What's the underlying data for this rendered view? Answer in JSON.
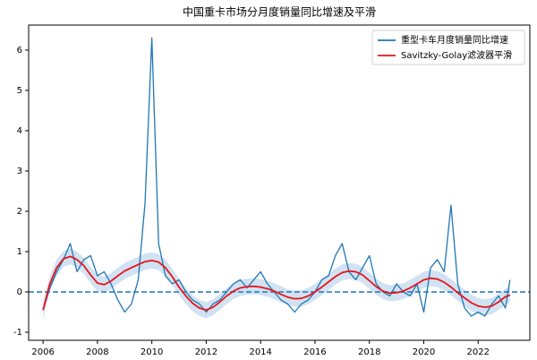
{
  "chart_data": {
    "type": "line",
    "title": "中国重卡市场分月度销量同比增速及平滑",
    "x": [
      2006,
      2006.25,
      2006.5,
      2006.75,
      2007,
      2007.25,
      2007.5,
      2007.75,
      2008,
      2008.25,
      2008.5,
      2008.75,
      2009,
      2009.25,
      2009.5,
      2009.75,
      2010,
      2010.25,
      2010.5,
      2010.75,
      2011,
      2011.25,
      2011.5,
      2011.75,
      2012,
      2012.25,
      2012.5,
      2012.75,
      2013,
      2013.25,
      2013.5,
      2013.75,
      2014,
      2014.25,
      2014.5,
      2014.75,
      2015,
      2015.25,
      2015.5,
      2015.75,
      2016,
      2016.25,
      2016.5,
      2016.75,
      2017,
      2017.25,
      2017.5,
      2017.75,
      2018,
      2018.25,
      2018.5,
      2018.75,
      2019,
      2019.25,
      2019.5,
      2019.75,
      2020,
      2020.25,
      2020.5,
      2020.75,
      2021,
      2021.25,
      2021.5,
      2021.75,
      2022,
      2022.25,
      2022.5,
      2022.75,
      2023,
      2023.17
    ],
    "series": [
      {
        "name": "重型卡车月度销量同比增速",
        "color": "#1f77b4",
        "values": [
          -0.45,
          0.1,
          0.5,
          0.8,
          1.2,
          0.5,
          0.8,
          0.9,
          0.4,
          0.5,
          0.2,
          -0.2,
          -0.5,
          -0.3,
          0.3,
          2.2,
          6.3,
          1.2,
          0.4,
          0.2,
          0.3,
          0.0,
          -0.2,
          -0.3,
          -0.5,
          -0.3,
          -0.2,
          0.0,
          0.2,
          0.3,
          0.1,
          0.3,
          0.5,
          0.2,
          0.0,
          -0.2,
          -0.3,
          -0.5,
          -0.3,
          -0.2,
          0.0,
          0.3,
          0.4,
          0.9,
          1.2,
          0.5,
          0.3,
          0.6,
          0.9,
          0.2,
          0.0,
          -0.1,
          0.2,
          0.0,
          -0.1,
          0.2,
          -0.5,
          0.6,
          0.8,
          0.5,
          2.15,
          0.2,
          -0.4,
          -0.6,
          -0.5,
          -0.6,
          -0.3,
          -0.1,
          -0.4,
          0.3
        ]
      },
      {
        "name": "Savitzky-Golay滤波器平滑",
        "color": "#e8141b",
        "values": [
          -0.45,
          0.2,
          0.6,
          0.82,
          0.88,
          0.8,
          0.65,
          0.42,
          0.22,
          0.18,
          0.27,
          0.4,
          0.52,
          0.6,
          0.68,
          0.75,
          0.78,
          0.74,
          0.6,
          0.38,
          0.12,
          -0.1,
          -0.28,
          -0.4,
          -0.45,
          -0.38,
          -0.25,
          -0.1,
          0.02,
          0.1,
          0.13,
          0.14,
          0.12,
          0.08,
          0.02,
          -0.06,
          -0.13,
          -0.17,
          -0.16,
          -0.1,
          0.0,
          0.12,
          0.25,
          0.38,
          0.48,
          0.52,
          0.5,
          0.42,
          0.28,
          0.13,
          0.02,
          -0.03,
          -0.02,
          0.02,
          0.1,
          0.2,
          0.3,
          0.34,
          0.32,
          0.24,
          0.12,
          -0.02,
          -0.15,
          -0.27,
          -0.35,
          -0.38,
          -0.35,
          -0.25,
          -0.12,
          -0.08
        ]
      }
    ],
    "band": {
      "color": "#c6dbef",
      "lower": [
        -0.65,
        0,
        0.4,
        0.62,
        0.68,
        0.6,
        0.45,
        0.22,
        0.02,
        -0.02,
        0.07,
        0.2,
        0.32,
        0.4,
        0.48,
        0.55,
        0.58,
        0.54,
        0.4,
        0.18,
        -0.08,
        -0.3,
        -0.48,
        -0.6,
        -0.65,
        -0.58,
        -0.45,
        -0.3,
        -0.18,
        -0.1,
        -0.07,
        -0.06,
        -0.08,
        -0.12,
        -0.18,
        -0.26,
        -0.33,
        -0.37,
        -0.36,
        -0.3,
        -0.2,
        -0.08,
        0.05,
        0.18,
        0.28,
        0.32,
        0.3,
        0.22,
        0.08,
        -0.07,
        -0.18,
        -0.23,
        -0.22,
        -0.18,
        -0.1,
        0,
        0.1,
        0.14,
        0.12,
        0.04,
        -0.08,
        -0.22,
        -0.35,
        -0.47,
        -0.55,
        -0.58,
        -0.55,
        -0.45,
        -0.32,
        -0.28
      ],
      "upper": [
        -0.25,
        0.4,
        0.8,
        1.02,
        1.08,
        1,
        0.85,
        0.62,
        0.42,
        0.38,
        0.47,
        0.6,
        0.72,
        0.8,
        0.88,
        0.95,
        0.98,
        0.94,
        0.8,
        0.58,
        0.32,
        0.1,
        -0.08,
        -0.2,
        -0.25,
        -0.18,
        -0.05,
        0.1,
        0.22,
        0.3,
        0.33,
        0.34,
        0.32,
        0.28,
        0.22,
        0.14,
        0.07,
        0.03,
        0.04,
        0.1,
        0.2,
        0.32,
        0.45,
        0.58,
        0.68,
        0.72,
        0.7,
        0.62,
        0.48,
        0.33,
        0.22,
        0.17,
        0.18,
        0.22,
        0.3,
        0.4,
        0.5,
        0.54,
        0.52,
        0.44,
        0.32,
        0.18,
        0.05,
        -0.07,
        -0.15,
        -0.18,
        -0.15,
        -0.05,
        0.08,
        0.12
      ]
    },
    "hline": {
      "value": 0,
      "color": "#1f77b4"
    },
    "xlim": [
      2005.47,
      2023.9
    ],
    "ylim": [
      -1.2,
      6.62
    ],
    "xticks": [
      2006,
      2008,
      2010,
      2012,
      2014,
      2016,
      2018,
      2020,
      2022
    ],
    "yticks": [
      -1,
      0,
      1,
      2,
      3,
      4,
      5,
      6
    ],
    "legend": "upper right"
  }
}
